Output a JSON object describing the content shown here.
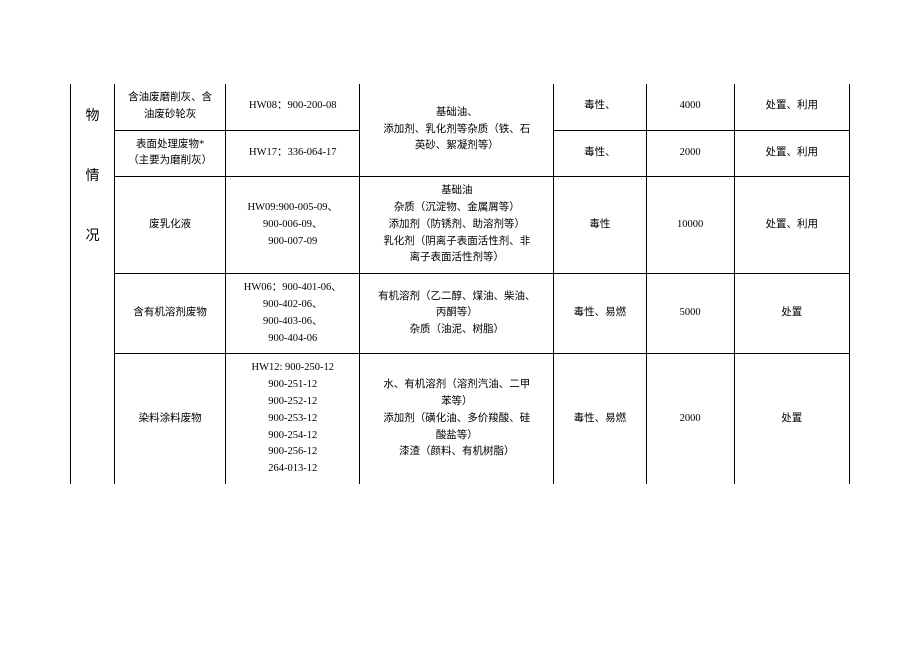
{
  "category_chars": [
    "物",
    "情",
    "况"
  ],
  "rows": [
    {
      "name": "含油废磨削灰、含\n油废砂轮灰",
      "code": "HW08：900-200-08",
      "hazard": "毒性、",
      "qty": "4000",
      "method": "处置、利用"
    },
    {
      "name": "表面处理废物*\n（主要为磨削灰）",
      "code": "HW17：336-064-17",
      "hazard": "毒性、",
      "qty": "2000",
      "method": "处置、利用"
    },
    {
      "name": "废乳化液",
      "code": "HW09:900-005-09、\n900-006-09、\n900-007-09",
      "composition": "基础油\n杂质（沉淀物、金属屑等）\n添加剂（防锈剂、助溶剂等）\n乳化剂（阴离子表面活性剂、非\n离子表面活性剂等）",
      "hazard": "毒性",
      "qty": "10000",
      "method": "处置、利用"
    },
    {
      "name": "含有机溶剂废物",
      "code": "HW06：900-401-06、\n900-402-06、\n900-403-06、\n900-404-06",
      "composition": "有机溶剂（乙二醇、煤油、柴油、\n丙酮等）\n杂质（油泥、树脂）",
      "hazard": "毒性、易燃",
      "qty": "5000",
      "method": "处置"
    },
    {
      "name": "染料涂料废物",
      "code": "HW12: 900-250-12\n900-251-12\n900-252-12\n900-253-12\n900-254-12\n900-256-12\n264-013-12",
      "composition": "水、有机溶剂（溶剂汽油、二甲\n苯等）\n添加剂（磺化油、多价羧酸、硅\n酸盐等）\n漆渣（颜料、有机树脂）",
      "hazard": "毒性、易燃",
      "qty": "2000",
      "method": "处置"
    }
  ],
  "shared_composition_0_1": "基础油、\n添加剂、乳化剂等杂质（铁、石\n英砂、絮凝剂等）"
}
